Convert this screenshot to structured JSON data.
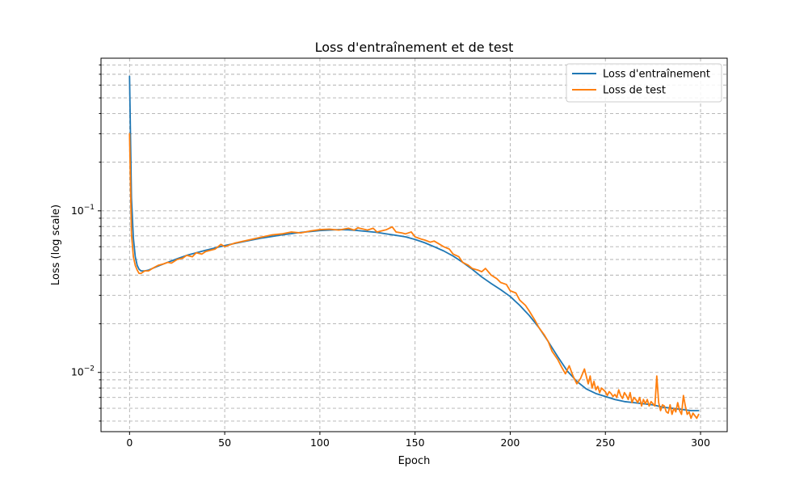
{
  "chart_data": {
    "type": "line",
    "title": "Loss d'entraînement et de test",
    "xlabel": "Epoch",
    "ylabel": "Loss (log scale)",
    "xlim": [
      -15,
      314
    ],
    "ylim": [
      0.0043,
      0.88
    ],
    "yscale": "log",
    "grid": true,
    "legend_position": "top-right",
    "x_ticks": [
      0,
      50,
      100,
      150,
      200,
      250,
      300
    ],
    "y_major_ticks": [
      {
        "value": 0.01,
        "base": "10",
        "exp": "−2"
      },
      {
        "value": 0.1,
        "base": "10",
        "exp": "−1"
      }
    ],
    "y_minor_ticks": [
      0.005,
      0.006,
      0.007,
      0.008,
      0.009,
      0.02,
      0.03,
      0.04,
      0.05,
      0.06,
      0.07,
      0.08,
      0.09,
      0.2,
      0.3,
      0.4,
      0.5,
      0.6,
      0.7,
      0.8
    ],
    "series": [
      {
        "name": "Loss d'entraînement",
        "color": "#1f77b4",
        "x": [
          0,
          1,
          2,
          3,
          4,
          5,
          6,
          8,
          10,
          15,
          20,
          25,
          30,
          40,
          50,
          60,
          70,
          80,
          90,
          100,
          105,
          110,
          115,
          120,
          125,
          130,
          135,
          140,
          145,
          150,
          155,
          160,
          165,
          170,
          175,
          180,
          185,
          190,
          195,
          200,
          205,
          210,
          215,
          220,
          225,
          230,
          235,
          240,
          245,
          250,
          255,
          260,
          265,
          270,
          275,
          280,
          285,
          290,
          295,
          299
        ],
        "y": [
          0.68,
          0.12,
          0.068,
          0.052,
          0.046,
          0.0435,
          0.0425,
          0.0425,
          0.043,
          0.0455,
          0.048,
          0.0505,
          0.053,
          0.057,
          0.061,
          0.0645,
          0.068,
          0.071,
          0.0735,
          0.0755,
          0.076,
          0.0765,
          0.0762,
          0.0755,
          0.0745,
          0.0735,
          0.072,
          0.0705,
          0.069,
          0.0665,
          0.0635,
          0.06,
          0.0565,
          0.0525,
          0.048,
          0.0435,
          0.039,
          0.0355,
          0.0325,
          0.0295,
          0.026,
          0.0225,
          0.019,
          0.0155,
          0.0125,
          0.0102,
          0.0088,
          0.0079,
          0.0074,
          0.0071,
          0.0068,
          0.0066,
          0.0065,
          0.0064,
          0.0063,
          0.0061,
          0.006,
          0.0059,
          0.0058,
          0.0058
        ]
      },
      {
        "name": "Loss de test",
        "color": "#ff7f0e",
        "x": [
          0,
          1,
          2,
          3,
          4,
          5,
          6,
          8,
          10,
          12,
          15,
          18,
          20,
          22,
          25,
          28,
          30,
          33,
          35,
          38,
          40,
          45,
          48,
          50,
          55,
          60,
          65,
          70,
          75,
          80,
          85,
          90,
          95,
          100,
          105,
          110,
          115,
          118,
          120,
          125,
          128,
          130,
          135,
          138,
          140,
          143,
          145,
          148,
          150,
          153,
          155,
          158,
          160,
          163,
          165,
          168,
          170,
          173,
          175,
          178,
          180,
          183,
          185,
          187,
          190,
          193,
          195,
          198,
          200,
          203,
          205,
          208,
          210,
          213,
          215,
          218,
          220,
          222,
          225,
          227,
          229,
          231,
          233,
          235,
          237,
          239,
          241,
          242,
          243,
          244,
          245,
          246,
          247,
          248,
          249,
          250,
          251,
          252,
          253,
          254,
          255,
          256,
          257,
          258,
          259,
          260,
          261,
          262,
          263,
          264,
          265,
          266,
          267,
          268,
          269,
          270,
          271,
          272,
          273,
          274,
          275,
          276,
          277,
          278,
          279,
          280,
          281,
          282,
          283,
          284,
          285,
          286,
          287,
          288,
          289,
          290,
          291,
          292,
          293,
          294,
          295,
          296,
          297,
          298,
          299
        ],
        "y": [
          0.3,
          0.072,
          0.052,
          0.046,
          0.043,
          0.041,
          0.041,
          0.0425,
          0.0425,
          0.044,
          0.046,
          0.047,
          0.048,
          0.0475,
          0.05,
          0.051,
          0.053,
          0.052,
          0.055,
          0.054,
          0.056,
          0.058,
          0.062,
          0.06,
          0.063,
          0.065,
          0.067,
          0.069,
          0.071,
          0.072,
          0.074,
          0.073,
          0.075,
          0.0765,
          0.077,
          0.076,
          0.078,
          0.076,
          0.0785,
          0.076,
          0.078,
          0.074,
          0.0765,
          0.0795,
          0.074,
          0.073,
          0.072,
          0.074,
          0.069,
          0.067,
          0.066,
          0.064,
          0.065,
          0.062,
          0.06,
          0.058,
          0.054,
          0.052,
          0.048,
          0.046,
          0.044,
          0.043,
          0.042,
          0.044,
          0.04,
          0.038,
          0.036,
          0.035,
          0.032,
          0.031,
          0.028,
          0.026,
          0.024,
          0.021,
          0.019,
          0.017,
          0.0155,
          0.0135,
          0.012,
          0.0108,
          0.0098,
          0.011,
          0.0095,
          0.0085,
          0.0092,
          0.0105,
          0.0085,
          0.0095,
          0.008,
          0.0088,
          0.0078,
          0.0082,
          0.0075,
          0.008,
          0.0078,
          0.0076,
          0.0072,
          0.0076,
          0.0074,
          0.0071,
          0.0073,
          0.007,
          0.0078,
          0.0072,
          0.0069,
          0.0075,
          0.0072,
          0.0068,
          0.0075,
          0.0065,
          0.007,
          0.0068,
          0.0065,
          0.007,
          0.0062,
          0.0068,
          0.0064,
          0.0068,
          0.0062,
          0.0066,
          0.0064,
          0.0062,
          0.0095,
          0.0065,
          0.0058,
          0.0063,
          0.0062,
          0.0057,
          0.0056,
          0.0063,
          0.0055,
          0.006,
          0.0057,
          0.0065,
          0.0058,
          0.0055,
          0.0072,
          0.0062,
          0.0055,
          0.0057,
          0.0052,
          0.0056,
          0.0054,
          0.0052,
          0.0055
        ]
      }
    ]
  }
}
